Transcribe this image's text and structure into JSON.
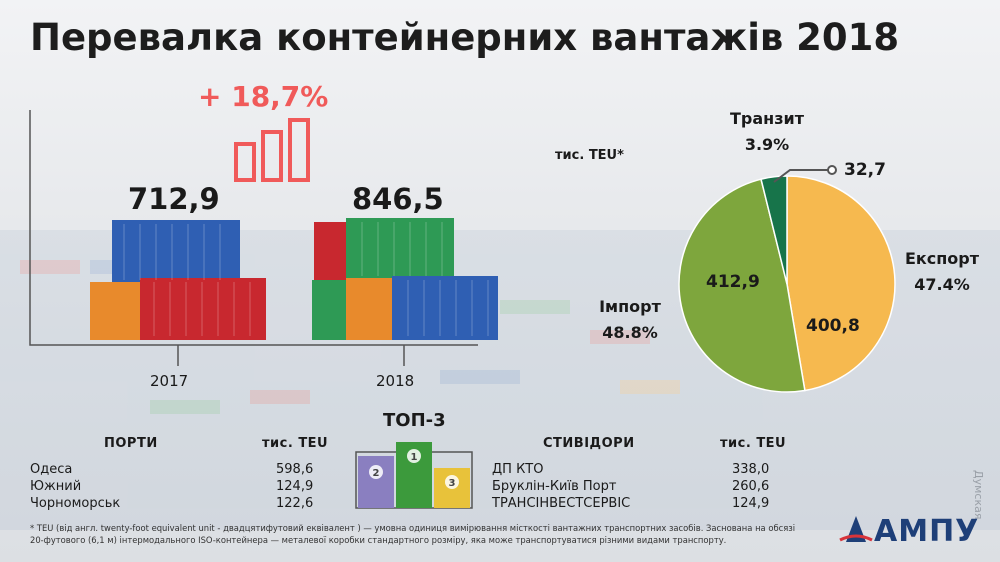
{
  "title": "Перевалка контейнерних вантажів 2018",
  "growth": "+ 18,7%",
  "chart_data": [
    {
      "type": "bar",
      "categories": [
        "2017",
        "2018"
      ],
      "values": [
        712.9,
        846.5
      ],
      "value_labels": [
        "712,9",
        "846,5"
      ]
    },
    {
      "type": "pie",
      "unit": "тис. TEU*",
      "slices": [
        {
          "name": "Експорт",
          "value": 400.8,
          "value_label": "400,8",
          "percent": "47.4%",
          "color": "#f6b94f"
        },
        {
          "name": "Імпорт",
          "value": 412.9,
          "value_label": "412,9",
          "percent": "48.8%",
          "color": "#7ea63d"
        },
        {
          "name": "Транзит",
          "value": 32.7,
          "value_label": "32,7",
          "percent": "3.9%",
          "color": "#17744a"
        }
      ]
    },
    {
      "type": "table",
      "headers": [
        "ПОРТИ",
        "тис. TEU"
      ],
      "rows": [
        [
          "Одеса",
          "598,6"
        ],
        [
          "Южний",
          "124,9"
        ],
        [
          "Чорноморськ",
          "122,6"
        ]
      ]
    },
    {
      "type": "table",
      "headers": [
        "СТИВІДОРИ",
        "тис. TEU"
      ],
      "rows": [
        [
          "ДП КТО",
          "338,0"
        ],
        [
          "Бруклін-Київ Порт",
          "260,6"
        ],
        [
          "ТРАНСІНВЕСТСЕРВІС",
          "124,9"
        ]
      ]
    }
  ],
  "top3_label": "ТОП-3",
  "podium": [
    "1",
    "2",
    "3"
  ],
  "footnote": "* TEU (від англ. twenty-foot equivalent unit - двадцятифутовий еквівалент ) — умовна одиниця вимірювання місткості вантажних транспортних засобів. Заснована на обсязі 20-футового (6,1 м) інтермодального ISO-контейнера — металевої коробки стандартного розміру, яка може транспортуватися різними видами транспорту.",
  "logo": "АМПУ",
  "watermark": "Думская",
  "colors": {
    "growth": "#f05a5a",
    "container_blue": "#2f5fb3",
    "container_red": "#c8282f",
    "container_orange": "#e88a2c",
    "container_green": "#2e9a55",
    "podium_purple": "#8a7fc0",
    "podium_green": "#3c9a3c",
    "podium_yellow": "#e8c23a"
  }
}
